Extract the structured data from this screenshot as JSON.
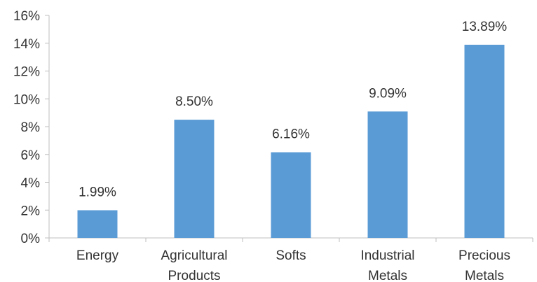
{
  "chart_data": {
    "type": "bar",
    "categories": [
      [
        "Energy"
      ],
      [
        "Agricultural",
        "Products"
      ],
      [
        "Softs"
      ],
      [
        "Industrial",
        "Metals"
      ],
      [
        "Precious",
        "Metals"
      ]
    ],
    "values": [
      1.99,
      8.5,
      6.16,
      9.09,
      13.89
    ],
    "data_labels": [
      "1.99%",
      "8.50%",
      "6.16%",
      "9.09%",
      "13.89%"
    ],
    "title": "",
    "xlabel": "",
    "ylabel": "",
    "ylim": [
      0,
      16
    ],
    "y_ticks": [
      0,
      2,
      4,
      6,
      8,
      10,
      12,
      14,
      16
    ],
    "y_tick_labels": [
      "0%",
      "2%",
      "4%",
      "6%",
      "8%",
      "10%",
      "12%",
      "14%",
      "16%"
    ],
    "grid": false,
    "legend": "none",
    "bar_color": "#5b9bd5",
    "axis_color": "#bfbfbf"
  }
}
